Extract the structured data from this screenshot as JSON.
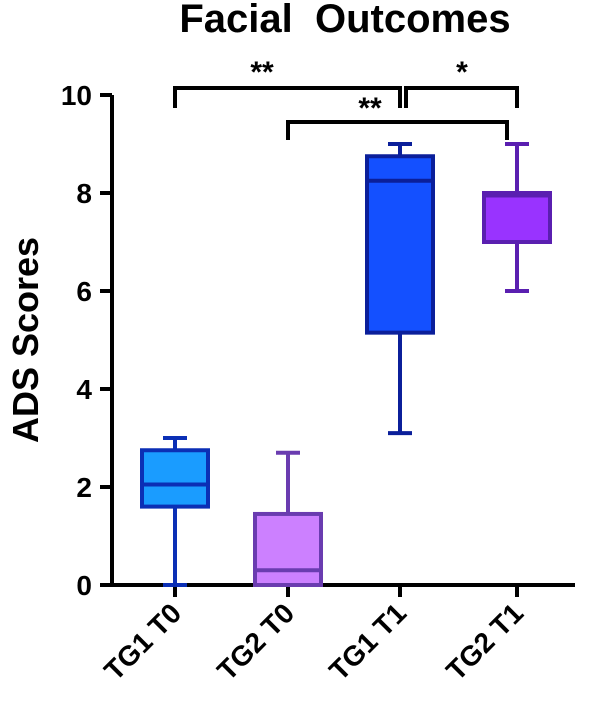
{
  "chart_data": {
    "type": "box",
    "title": "Facial  Outcomes",
    "xlabel": "",
    "ylabel": "ADS Scores",
    "ylim": [
      0,
      10
    ],
    "yticks": [
      "0",
      "2",
      "4",
      "6",
      "8",
      "10"
    ],
    "grid": false,
    "categories": [
      "TG1 T0",
      "TG2 T0",
      "TG1 T1",
      "TG2 T1"
    ],
    "boxes": [
      {
        "name": "TG1 T0",
        "min": 0.0,
        "q1": 1.6,
        "median": 2.05,
        "q3": 2.75,
        "max": 3.0,
        "fill": "#1a9cff",
        "stroke": "#0b2fb5"
      },
      {
        "name": "TG2 T0",
        "min": 0.0,
        "q1": 0.0,
        "median": 0.3,
        "q3": 1.45,
        "max": 2.7,
        "fill": "#cc80ff",
        "stroke": "#6a3cb0"
      },
      {
        "name": "TG1 T1",
        "min": 3.1,
        "q1": 5.15,
        "median": 8.25,
        "q3": 8.75,
        "max": 9.0,
        "fill": "#1450ff",
        "stroke": "#0b1f9a"
      },
      {
        "name": "TG2 T1",
        "min": 6.0,
        "q1": 7.0,
        "median": 7.95,
        "q3": 8.0,
        "max": 9.0,
        "fill": "#9933ff",
        "stroke": "#5a1fb0"
      }
    ],
    "significance": [
      {
        "from": "TG1 T0",
        "to": "TG1 T1",
        "label": "**"
      },
      {
        "from": "TG1 T1",
        "to": "TG2 T1",
        "label": "*"
      },
      {
        "from": "TG2 T0",
        "to": "TG2 T1",
        "label": "**"
      }
    ]
  }
}
